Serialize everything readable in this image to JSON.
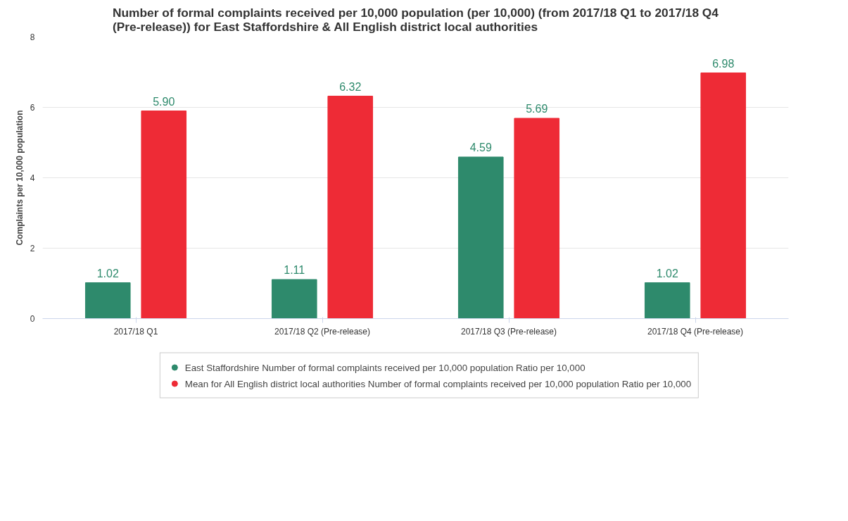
{
  "chart_data": {
    "type": "bar",
    "title": "Number of formal complaints received per 10,000 population (per 10,000) (from 2017/18 Q1 to 2017/18 Q4 (Pre-release)) for East Staffordshire & All English district local authorities",
    "ylabel": "Complaints per 10,000 population",
    "categories": [
      "2017/18 Q1",
      "2017/18 Q2 (Pre-release)",
      "2017/18 Q3 (Pre-release)",
      "2017/18 Q4 (Pre-release)"
    ],
    "series": [
      {
        "name": "East Staffordshire Number of formal complaints received per 10,000 population Ratio per 10,000",
        "color": "#2e8a6c",
        "values": [
          1.02,
          1.11,
          4.59,
          1.02
        ],
        "value_labels": [
          "1.02",
          "1.11",
          "4.59",
          "1.02"
        ]
      },
      {
        "name": "Mean for All English district local authorities Number of formal complaints received per 10,000 population Ratio per 10,000",
        "color": "#ee2b36",
        "values": [
          5.9,
          6.32,
          5.69,
          6.98
        ],
        "value_labels": [
          "5.90",
          "6.32",
          "5.69",
          "6.98"
        ]
      }
    ],
    "ylim": [
      0,
      8
    ],
    "yticks": [
      0,
      2,
      4,
      6,
      8
    ],
    "grid": "y",
    "legend": "bottom"
  }
}
